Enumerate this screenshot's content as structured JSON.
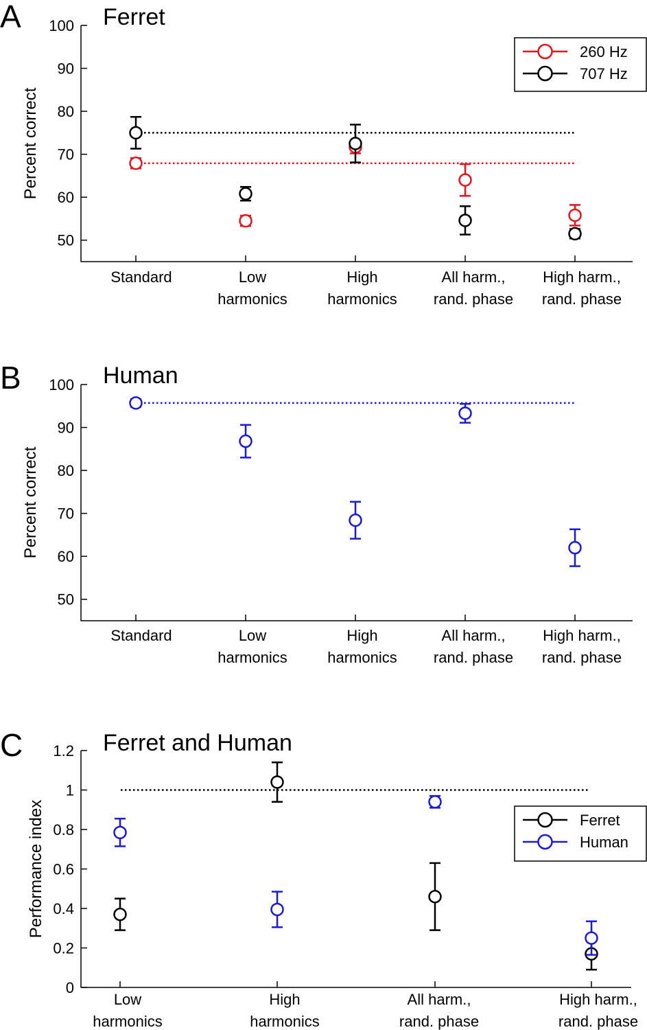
{
  "chart_data": [
    {
      "type": "scatter",
      "panel": "A",
      "title": "Ferret",
      "ylabel": "Percent correct",
      "xlabel": "",
      "ylim": [
        45,
        100
      ],
      "yticks": [
        50,
        60,
        70,
        80,
        90,
        100
      ],
      "categories": [
        [
          "Standard"
        ],
        [
          "Low",
          "harmonics"
        ],
        [
          "High",
          "harmonics"
        ],
        [
          "All harm.,",
          "rand. phase"
        ],
        [
          "High harm.,",
          "rand. phase"
        ]
      ],
      "legend": "top-right",
      "series": [
        {
          "name": "260 Hz",
          "color": "#e8141c",
          "values": [
            67.9,
            54.5,
            71.7,
            64.0,
            55.8
          ],
          "err": [
            1.2,
            1.2,
            1.5,
            3.7,
            2.4
          ],
          "baseline": 67.9
        },
        {
          "name": "707 Hz",
          "color": "#000000",
          "values": [
            75.0,
            60.8,
            72.5,
            54.6,
            51.5
          ],
          "err": [
            3.7,
            1.6,
            4.4,
            3.3,
            1.1
          ],
          "baseline": 75.0
        }
      ]
    },
    {
      "type": "scatter",
      "panel": "B",
      "title": "Human",
      "ylabel": "Percent correct",
      "xlabel": "",
      "ylim": [
        45,
        100
      ],
      "yticks": [
        50,
        60,
        70,
        80,
        90,
        100
      ],
      "categories": [
        [
          "Standard"
        ],
        [
          "Low",
          "harmonics"
        ],
        [
          "High",
          "harmonics"
        ],
        [
          "All harm.,",
          "rand. phase"
        ],
        [
          "High harm.,",
          "rand. phase"
        ]
      ],
      "series": [
        {
          "name": "Human",
          "color": "#1a1adc",
          "values": [
            95.7,
            86.8,
            68.4,
            93.3,
            62.0
          ],
          "err": [
            0.9,
            3.8,
            4.3,
            2.2,
            4.3
          ],
          "baseline": 95.7
        }
      ]
    },
    {
      "type": "scatter",
      "panel": "C",
      "title": "Ferret and Human",
      "ylabel": "Performance index",
      "xlabel": "",
      "ylim": [
        0,
        1.2
      ],
      "yticks": [
        0,
        0.2,
        0.4,
        0.6,
        0.8,
        1,
        1.2
      ],
      "categories": [
        [
          "Low",
          "harmonics"
        ],
        [
          "High",
          "harmonics"
        ],
        [
          "All harm.,",
          "rand. phase"
        ],
        [
          "High harm.,",
          "rand. phase"
        ]
      ],
      "legend": "right",
      "reference_line": 1,
      "series": [
        {
          "name": "Ferret",
          "color": "#000000",
          "values": [
            0.37,
            1.04,
            0.46,
            0.17
          ],
          "err": [
            0.08,
            0.1,
            0.17,
            0.08
          ]
        },
        {
          "name": "Human",
          "color": "#1a1adc",
          "values": [
            0.785,
            0.395,
            0.94,
            0.25
          ],
          "err": [
            0.07,
            0.09,
            0.03,
            0.085
          ]
        }
      ]
    }
  ]
}
